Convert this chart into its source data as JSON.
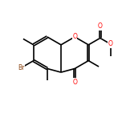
{
  "bg_color": "#ffffff",
  "bond_color": "#000000",
  "O_color": "#ff0000",
  "Br_color": "#8b4513",
  "figsize": [
    1.52,
    1.52
  ],
  "dpi": 100,
  "lw": 1.2,
  "doff": 0.08,
  "fs": 5.5,
  "xlim": [
    0,
    10
  ],
  "ylim": [
    0,
    10
  ]
}
